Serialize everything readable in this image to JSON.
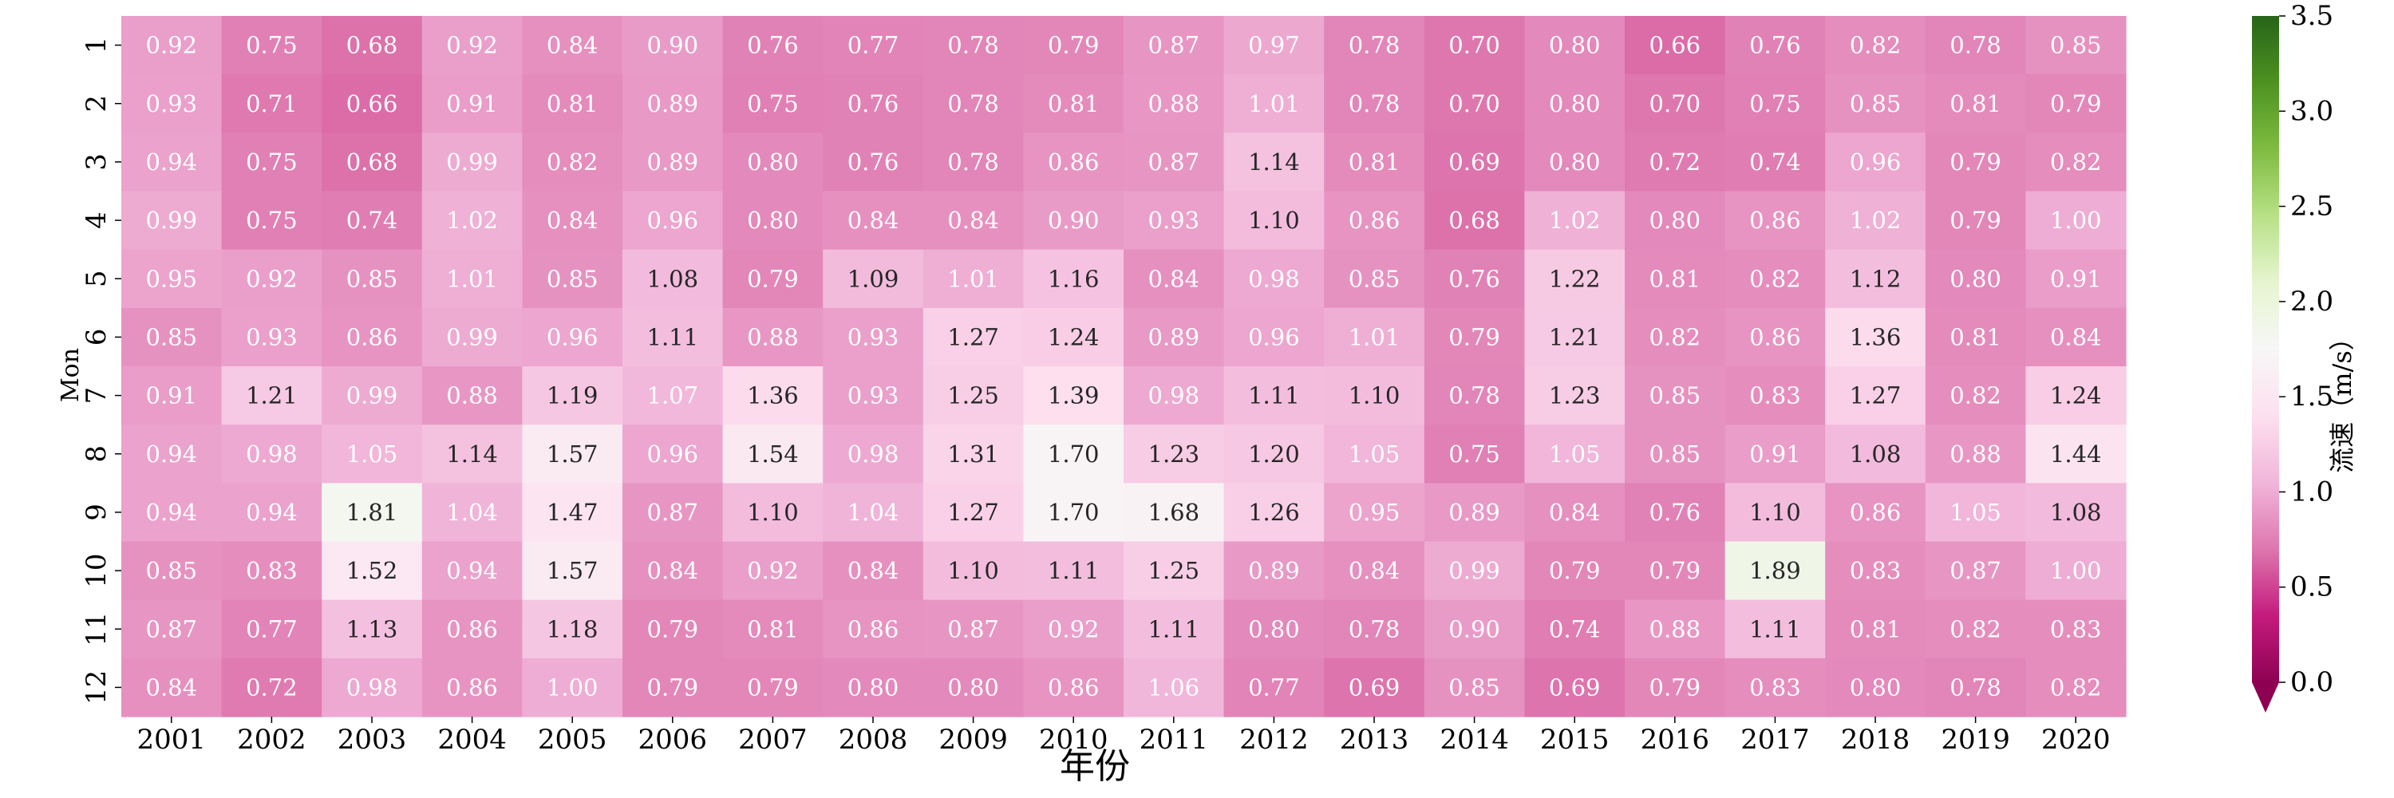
{
  "chart_data": {
    "type": "heatmap",
    "title": "",
    "xlabel": "年份",
    "ylabel": "Mon",
    "x": [
      "2001",
      "2002",
      "2003",
      "2004",
      "2005",
      "2006",
      "2007",
      "2008",
      "2009",
      "2010",
      "2011",
      "2012",
      "2013",
      "2014",
      "2015",
      "2016",
      "2017",
      "2018",
      "2019",
      "2020"
    ],
    "y": [
      "1",
      "2",
      "3",
      "4",
      "5",
      "6",
      "7",
      "8",
      "9",
      "10",
      "11",
      "12"
    ],
    "values": [
      [
        0.92,
        0.75,
        0.68,
        0.92,
        0.84,
        0.9,
        0.76,
        0.77,
        0.78,
        0.79,
        0.87,
        0.97,
        0.78,
        0.7,
        0.8,
        0.66,
        0.76,
        0.82,
        0.78,
        0.85
      ],
      [
        0.93,
        0.71,
        0.66,
        0.91,
        0.81,
        0.89,
        0.75,
        0.76,
        0.78,
        0.81,
        0.88,
        1.01,
        0.78,
        0.7,
        0.8,
        0.7,
        0.75,
        0.85,
        0.81,
        0.79
      ],
      [
        0.94,
        0.75,
        0.68,
        0.99,
        0.82,
        0.89,
        0.8,
        0.76,
        0.78,
        0.86,
        0.87,
        1.14,
        0.81,
        0.69,
        0.8,
        0.72,
        0.74,
        0.96,
        0.79,
        0.82
      ],
      [
        0.99,
        0.75,
        0.74,
        1.02,
        0.84,
        0.96,
        0.8,
        0.84,
        0.84,
        0.9,
        0.93,
        1.1,
        0.86,
        0.68,
        1.02,
        0.8,
        0.86,
        1.02,
        0.79,
        1.0
      ],
      [
        0.95,
        0.92,
        0.85,
        1.01,
        0.85,
        1.08,
        0.79,
        1.09,
        1.01,
        1.16,
        0.84,
        0.98,
        0.85,
        0.76,
        1.22,
        0.81,
        0.82,
        1.12,
        0.8,
        0.91
      ],
      [
        0.85,
        0.93,
        0.86,
        0.99,
        0.96,
        1.11,
        0.88,
        0.93,
        1.27,
        1.24,
        0.89,
        0.96,
        1.01,
        0.79,
        1.21,
        0.82,
        0.86,
        1.36,
        0.81,
        0.84
      ],
      [
        0.91,
        1.21,
        0.99,
        0.88,
        1.19,
        1.07,
        1.36,
        0.93,
        1.25,
        1.39,
        0.98,
        1.11,
        1.1,
        0.78,
        1.23,
        0.85,
        0.83,
        1.27,
        0.82,
        1.24
      ],
      [
        0.94,
        0.98,
        1.05,
        1.14,
        1.57,
        0.96,
        1.54,
        0.98,
        1.31,
        1.7,
        1.23,
        1.2,
        1.05,
        0.75,
        1.05,
        0.85,
        0.91,
        1.08,
        0.88,
        1.44
      ],
      [
        0.94,
        0.94,
        1.81,
        1.04,
        1.47,
        0.87,
        1.1,
        1.04,
        1.27,
        1.7,
        1.68,
        1.26,
        0.95,
        0.89,
        0.84,
        0.76,
        1.1,
        0.86,
        1.05,
        1.08
      ],
      [
        0.85,
        0.83,
        1.52,
        0.94,
        1.57,
        0.84,
        0.92,
        0.84,
        1.1,
        1.11,
        1.25,
        0.89,
        0.84,
        0.99,
        0.79,
        0.79,
        1.89,
        0.83,
        0.87,
        1.0
      ],
      [
        0.87,
        0.77,
        1.13,
        0.86,
        1.18,
        0.79,
        0.81,
        0.86,
        0.87,
        0.92,
        1.11,
        0.8,
        0.78,
        0.9,
        0.74,
        0.88,
        1.11,
        0.81,
        0.82,
        0.83
      ],
      [
        0.84,
        0.72,
        0.98,
        0.86,
        1.0,
        0.79,
        0.79,
        0.8,
        0.8,
        0.86,
        1.06,
        0.77,
        0.69,
        0.85,
        0.69,
        0.79,
        0.83,
        0.8,
        0.78,
        0.82
      ]
    ],
    "value_format": "0.00",
    "colormap": "PiYG",
    "vmin": 0.0,
    "vmax": 3.5,
    "colorbar": {
      "label": "流速（m/s）",
      "ticks": [
        "0.0",
        "0.5",
        "1.0",
        "1.5",
        "2.0",
        "2.5",
        "3.0",
        "3.5"
      ],
      "extend": "min"
    },
    "grid": false
  }
}
